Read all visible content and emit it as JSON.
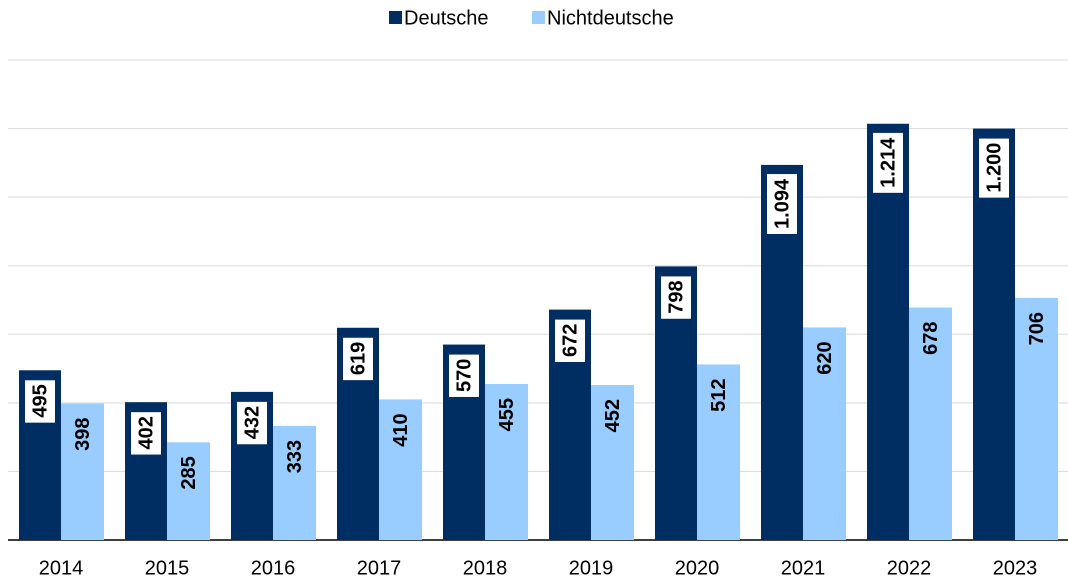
{
  "chart_data": {
    "type": "bar",
    "categories": [
      "2014",
      "2015",
      "2016",
      "2017",
      "2018",
      "2019",
      "2020",
      "2021",
      "2022",
      "2023"
    ],
    "series": [
      {
        "name": "Deutsche",
        "color": "#002d62",
        "values": [
          495,
          402,
          432,
          619,
          570,
          672,
          798,
          1094,
          1214,
          1200
        ],
        "value_labels": [
          "495",
          "402",
          "432",
          "619",
          "570",
          "672",
          "798",
          "1.094",
          "1.214",
          "1.200"
        ]
      },
      {
        "name": "Nichtdeutsche",
        "color": "#99ccff",
        "values": [
          398,
          285,
          333,
          410,
          455,
          452,
          512,
          620,
          678,
          706
        ]
      }
    ],
    "ylim": [
      0,
      1400
    ],
    "yticks": [
      0,
      200,
      400,
      600,
      800,
      1000,
      1200,
      1400
    ],
    "grid": true,
    "legend": "top"
  }
}
